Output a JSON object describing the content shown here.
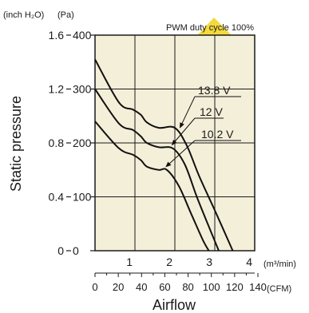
{
  "colors": {
    "plot_background": "#f4efd9",
    "grid": "#1a1a1a",
    "curve": "#111111",
    "watermark": "#f2d21b"
  },
  "chart_data": {
    "type": "line",
    "title": "",
    "annotation": "PWM duty cycle 100%",
    "xlabel": "Airflow",
    "ylabel": "Static pressure",
    "x_units": {
      "primary": "(m³/min)",
      "secondary": "(CFM)"
    },
    "y_units": {
      "left": "(inch H₂O)",
      "right": "(Pa)"
    },
    "xlim": [
      0,
      4
    ],
    "ylim": [
      0,
      400
    ],
    "grid": true,
    "x_ticks_primary": [
      "1",
      "2",
      "3",
      "4"
    ],
    "x_ticks_secondary": [
      "0",
      "20",
      "40",
      "60",
      "80",
      "100",
      "120",
      "140"
    ],
    "y_ticks_pa": [
      "0",
      "100",
      "200",
      "300",
      "400"
    ],
    "y_ticks_inch": [
      "0",
      "0.4",
      "0.8",
      "1.2",
      "1.6"
    ],
    "series": [
      {
        "name": "13.8 V",
        "points": [
          [
            0,
            355
          ],
          [
            0.6,
            275
          ],
          [
            0.95,
            262
          ],
          [
            1.15,
            252
          ],
          [
            1.3,
            238
          ],
          [
            1.6,
            228
          ],
          [
            2.0,
            228
          ],
          [
            2.3,
            195
          ],
          [
            2.6,
            140
          ],
          [
            3.0,
            75
          ],
          [
            3.45,
            0
          ]
        ]
      },
      {
        "name": "12 V",
        "points": [
          [
            0,
            300
          ],
          [
            0.6,
            236
          ],
          [
            0.95,
            224
          ],
          [
            1.15,
            212
          ],
          [
            1.3,
            200
          ],
          [
            1.6,
            192
          ],
          [
            1.95,
            190
          ],
          [
            2.25,
            160
          ],
          [
            2.55,
            100
          ],
          [
            2.85,
            45
          ],
          [
            3.1,
            0
          ]
        ]
      },
      {
        "name": "10.2 V",
        "points": [
          [
            0,
            240
          ],
          [
            0.6,
            190
          ],
          [
            0.95,
            178
          ],
          [
            1.15,
            168
          ],
          [
            1.3,
            156
          ],
          [
            1.6,
            150
          ],
          [
            1.8,
            150
          ],
          [
            2.1,
            120
          ],
          [
            2.4,
            70
          ],
          [
            2.7,
            20
          ],
          [
            2.85,
            0
          ]
        ]
      }
    ]
  }
}
